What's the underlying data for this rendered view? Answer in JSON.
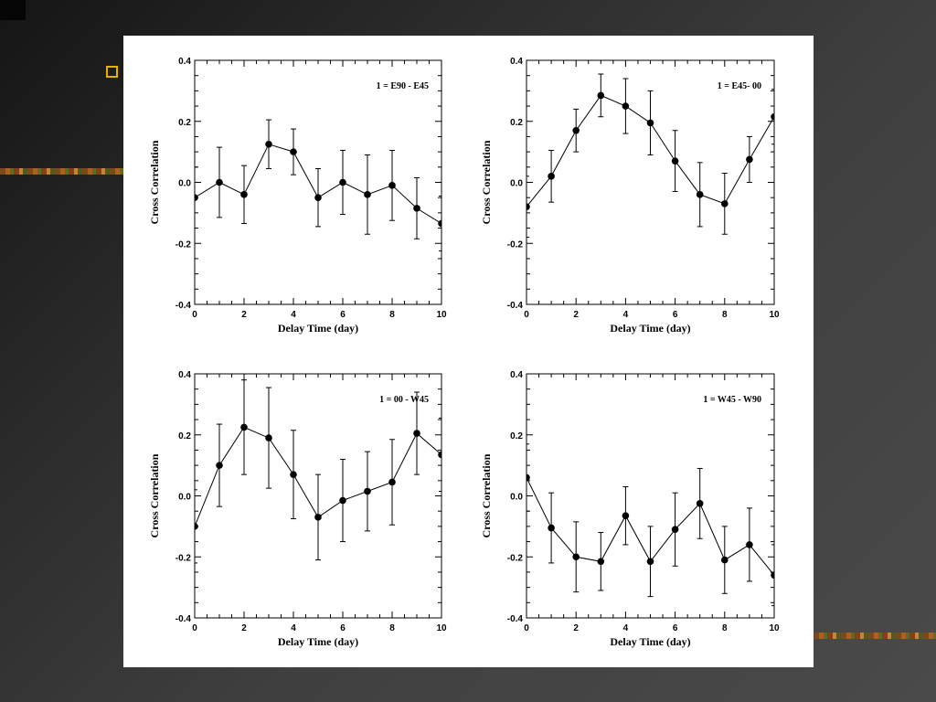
{
  "chart_data": [
    {
      "type": "line",
      "annotation": "1 = E90 - E45",
      "xlabel": "Delay Time (day)",
      "ylabel": "Cross Correlation",
      "xlim": [
        0,
        10
      ],
      "ylim": [
        -0.4,
        0.4
      ],
      "xticks": [
        "0",
        "2",
        "4",
        "6",
        "8",
        "10"
      ],
      "yticks": [
        "-0.4",
        "-0.2",
        "0.0",
        "0.2",
        "0.4"
      ],
      "grid": false,
      "x": [
        0,
        1,
        2,
        3,
        4,
        5,
        6,
        7,
        8,
        9,
        10
      ],
      "y": [
        -0.05,
        0.0,
        -0.04,
        0.125,
        0.1,
        -0.05,
        0.0,
        -0.04,
        -0.01,
        -0.085,
        -0.135
      ],
      "error": [
        0.1,
        0.115,
        0.095,
        0.08,
        0.075,
        0.095,
        0.105,
        0.13,
        0.115,
        0.1,
        0.09
      ]
    },
    {
      "type": "line",
      "annotation": "1 = E45- 00",
      "xlabel": "Delay Time (day)",
      "ylabel": "Cross Correlation",
      "xlim": [
        0,
        10
      ],
      "ylim": [
        -0.4,
        0.4
      ],
      "xticks": [
        "0",
        "2",
        "4",
        "6",
        "8",
        "10"
      ],
      "yticks": [
        "-0.4",
        "-0.2",
        "0.0",
        "0.2",
        "0.4"
      ],
      "grid": false,
      "x": [
        0,
        1,
        2,
        3,
        4,
        5,
        6,
        7,
        8,
        9,
        10
      ],
      "y": [
        -0.08,
        0.02,
        0.17,
        0.285,
        0.25,
        0.195,
        0.07,
        -0.04,
        -0.07,
        0.075,
        0.215
      ],
      "error": [
        0.1,
        0.085,
        0.07,
        0.07,
        0.09,
        0.105,
        0.1,
        0.105,
        0.1,
        0.075,
        0.09
      ]
    },
    {
      "type": "line",
      "annotation": "1 = 00 - W45",
      "xlabel": "Delay Time (day)",
      "ylabel": "Cross Correlation",
      "xlim": [
        0,
        10
      ],
      "ylim": [
        -0.4,
        0.4
      ],
      "xticks": [
        "0",
        "2",
        "4",
        "6",
        "8",
        "10"
      ],
      "yticks": [
        "-0.4",
        "-0.2",
        "0.0",
        "0.2",
        "0.4"
      ],
      "grid": false,
      "x": [
        0,
        1,
        2,
        3,
        4,
        5,
        6,
        7,
        8,
        9,
        10
      ],
      "y": [
        -0.1,
        0.1,
        0.225,
        0.19,
        0.07,
        -0.07,
        -0.015,
        0.015,
        0.045,
        0.205,
        0.135
      ],
      "error": [
        0.12,
        0.135,
        0.155,
        0.165,
        0.145,
        0.14,
        0.135,
        0.13,
        0.14,
        0.135,
        0.12
      ]
    },
    {
      "type": "line",
      "annotation": "1 = W45 - W90",
      "xlabel": "Delay Time (day)",
      "ylabel": "Cross Correlation",
      "xlim": [
        0,
        10
      ],
      "ylim": [
        -0.4,
        0.4
      ],
      "xticks": [
        "0",
        "2",
        "4",
        "6",
        "8",
        "10"
      ],
      "yticks": [
        "-0.4",
        "-0.2",
        "0.0",
        "0.2",
        "0.4"
      ],
      "grid": false,
      "x": [
        0,
        1,
        2,
        3,
        4,
        5,
        6,
        7,
        8,
        9,
        10
      ],
      "y": [
        0.06,
        -0.105,
        -0.2,
        -0.215,
        -0.065,
        -0.215,
        -0.11,
        -0.025,
        -0.21,
        -0.16,
        -0.26
      ],
      "error": [
        0.11,
        0.115,
        0.115,
        0.095,
        0.095,
        0.115,
        0.12,
        0.115,
        0.11,
        0.12,
        0.1
      ]
    }
  ],
  "colors": {
    "marker": "#000000",
    "background": "#ffffff",
    "bullet": "#e2b400"
  }
}
